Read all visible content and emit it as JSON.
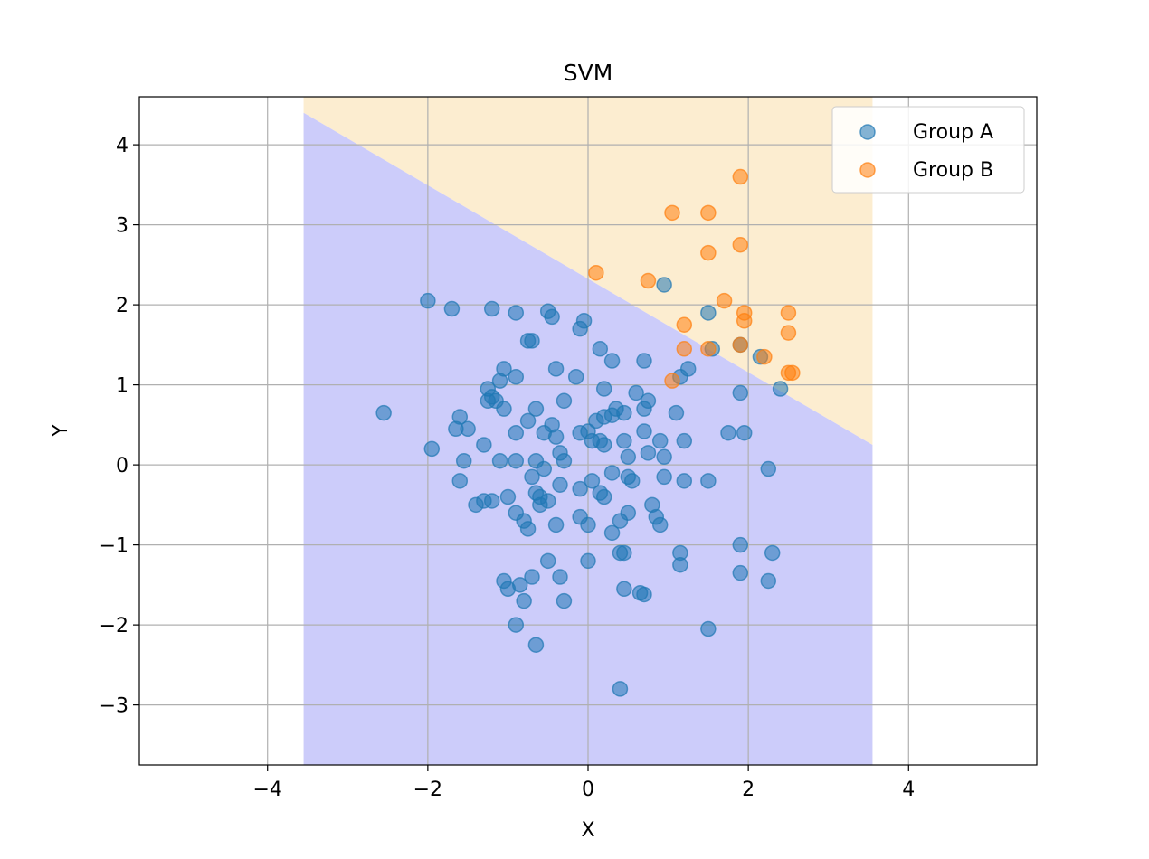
{
  "chart_data": {
    "type": "scatter",
    "title": "SVM",
    "xlabel": "X",
    "ylabel": "Y",
    "xlim": [
      -5.6,
      5.6
    ],
    "ylim": [
      -3.75,
      4.6
    ],
    "xticks": [
      -4,
      -2,
      0,
      2,
      4
    ],
    "xtick_labels": [
      "−4",
      "−2",
      "0",
      "2",
      "4"
    ],
    "yticks": [
      -3,
      -2,
      -1,
      0,
      1,
      2,
      3,
      4
    ],
    "ytick_labels": [
      "−3",
      "−2",
      "−1",
      "0",
      "1",
      "2",
      "3",
      "4"
    ],
    "grid": true,
    "legend": {
      "position": "upper right",
      "entries": [
        "Group A",
        "Group B"
      ]
    },
    "decision_regions": {
      "x_range": [
        -3.55,
        3.55
      ],
      "boundary": {
        "x0": -3.55,
        "y0": 4.4,
        "x1": 3.55,
        "y1": 0.25
      },
      "lower_region_color": "#ccccfa",
      "upper_region_color": "#fcedd0"
    },
    "series": [
      {
        "name": "Group A",
        "color": "#1f77b4",
        "points": [
          [
            -2.0,
            2.05
          ],
          [
            -1.7,
            1.95
          ],
          [
            -1.2,
            1.95
          ],
          [
            -0.9,
            1.9
          ],
          [
            -0.5,
            1.92
          ],
          [
            -0.45,
            1.85
          ],
          [
            -0.05,
            1.8
          ],
          [
            -0.1,
            1.7
          ],
          [
            -0.75,
            1.55
          ],
          [
            -0.7,
            1.55
          ],
          [
            0.15,
            1.45
          ],
          [
            0.3,
            1.3
          ],
          [
            0.7,
            1.3
          ],
          [
            -1.05,
            1.2
          ],
          [
            -0.4,
            1.2
          ],
          [
            -0.15,
            1.1
          ],
          [
            -1.1,
            1.05
          ],
          [
            -0.9,
            1.1
          ],
          [
            -1.25,
            0.95
          ],
          [
            -1.2,
            0.85
          ],
          [
            -1.25,
            0.8
          ],
          [
            -1.15,
            0.8
          ],
          [
            -0.3,
            0.8
          ],
          [
            0.2,
            0.95
          ],
          [
            0.6,
            0.9
          ],
          [
            0.75,
            0.8
          ],
          [
            -1.05,
            0.7
          ],
          [
            -0.65,
            0.7
          ],
          [
            -0.75,
            0.55
          ],
          [
            -0.45,
            0.5
          ],
          [
            0.35,
            0.7
          ],
          [
            0.45,
            0.65
          ],
          [
            0.7,
            0.7
          ],
          [
            1.1,
            0.65
          ],
          [
            -1.6,
            0.6
          ],
          [
            -1.65,
            0.45
          ],
          [
            -1.5,
            0.45
          ],
          [
            -0.9,
            0.4
          ],
          [
            -0.55,
            0.4
          ],
          [
            -0.1,
            0.4
          ],
          [
            0.0,
            0.42
          ],
          [
            0.1,
            0.55
          ],
          [
            0.2,
            0.6
          ],
          [
            0.3,
            0.62
          ],
          [
            0.7,
            0.42
          ],
          [
            -2.55,
            0.65
          ],
          [
            -1.95,
            0.2
          ],
          [
            -1.3,
            0.25
          ],
          [
            -0.4,
            0.35
          ],
          [
            0.05,
            0.3
          ],
          [
            0.15,
            0.3
          ],
          [
            0.2,
            0.25
          ],
          [
            0.45,
            0.3
          ],
          [
            0.9,
            0.3
          ],
          [
            1.2,
            0.3
          ],
          [
            -1.55,
            0.05
          ],
          [
            -1.1,
            0.05
          ],
          [
            -0.9,
            0.05
          ],
          [
            -0.65,
            0.05
          ],
          [
            -0.35,
            0.15
          ],
          [
            -0.3,
            0.05
          ],
          [
            0.5,
            0.1
          ],
          [
            0.75,
            0.15
          ],
          [
            0.95,
            0.1
          ],
          [
            -0.55,
            -0.05
          ],
          [
            -0.7,
            -0.15
          ],
          [
            0.3,
            -0.1
          ],
          [
            0.5,
            -0.15
          ],
          [
            0.55,
            -0.2
          ],
          [
            0.95,
            -0.15
          ],
          [
            1.2,
            -0.2
          ],
          [
            1.5,
            -0.2
          ],
          [
            -1.6,
            -0.2
          ],
          [
            -1.0,
            -0.4
          ],
          [
            -0.65,
            -0.35
          ],
          [
            -0.6,
            -0.4
          ],
          [
            -0.35,
            -0.25
          ],
          [
            -0.1,
            -0.3
          ],
          [
            0.05,
            -0.2
          ],
          [
            0.15,
            -0.35
          ],
          [
            0.2,
            -0.4
          ],
          [
            -1.4,
            -0.5
          ],
          [
            -1.3,
            -0.45
          ],
          [
            -1.2,
            -0.45
          ],
          [
            -0.6,
            -0.5
          ],
          [
            -0.5,
            -0.45
          ],
          [
            -0.9,
            -0.6
          ],
          [
            -0.8,
            -0.7
          ],
          [
            -0.75,
            -0.8
          ],
          [
            -0.4,
            -0.75
          ],
          [
            -0.1,
            -0.65
          ],
          [
            0.0,
            -0.75
          ],
          [
            0.4,
            -0.7
          ],
          [
            0.5,
            -0.6
          ],
          [
            0.8,
            -0.5
          ],
          [
            0.85,
            -0.65
          ],
          [
            0.9,
            -0.75
          ],
          [
            0.3,
            -0.85
          ],
          [
            0.4,
            -1.1
          ],
          [
            0.45,
            -1.1
          ],
          [
            -0.5,
            -1.2
          ],
          [
            0.0,
            -1.2
          ],
          [
            1.15,
            -1.1
          ],
          [
            1.15,
            -1.25
          ],
          [
            1.9,
            -1.0
          ],
          [
            1.9,
            -1.35
          ],
          [
            2.3,
            -1.1
          ],
          [
            -1.05,
            -1.45
          ],
          [
            -1.0,
            -1.55
          ],
          [
            -0.7,
            -1.4
          ],
          [
            -0.35,
            -1.4
          ],
          [
            -0.3,
            -1.7
          ],
          [
            -0.8,
            -1.7
          ],
          [
            -0.85,
            -1.5
          ],
          [
            0.45,
            -1.55
          ],
          [
            0.65,
            -1.6
          ],
          [
            0.7,
            -1.62
          ],
          [
            2.25,
            -1.45
          ],
          [
            -0.9,
            -2.0
          ],
          [
            -0.65,
            -2.25
          ],
          [
            1.5,
            -2.05
          ],
          [
            0.4,
            -2.8
          ],
          [
            1.9,
            1.5
          ],
          [
            2.15,
            1.35
          ],
          [
            2.4,
            0.95
          ],
          [
            1.55,
            1.45
          ],
          [
            1.25,
            1.2
          ],
          [
            1.15,
            1.1
          ],
          [
            1.5,
            1.9
          ],
          [
            0.95,
            2.25
          ],
          [
            1.9,
            0.9
          ],
          [
            1.75,
            0.4
          ],
          [
            1.95,
            0.4
          ],
          [
            2.25,
            -0.05
          ]
        ]
      },
      {
        "name": "Group B",
        "color": "#ff7f0e",
        "points": [
          [
            1.9,
            3.6
          ],
          [
            1.05,
            3.15
          ],
          [
            1.5,
            3.15
          ],
          [
            1.9,
            2.75
          ],
          [
            1.5,
            2.65
          ],
          [
            0.1,
            2.4
          ],
          [
            0.75,
            2.3
          ],
          [
            1.7,
            2.05
          ],
          [
            1.95,
            1.9
          ],
          [
            1.95,
            1.8
          ],
          [
            1.2,
            1.75
          ],
          [
            2.5,
            1.9
          ],
          [
            2.5,
            1.65
          ],
          [
            1.2,
            1.45
          ],
          [
            1.5,
            1.45
          ],
          [
            1.9,
            1.5
          ],
          [
            2.2,
            1.35
          ],
          [
            2.55,
            1.15
          ],
          [
            2.5,
            1.15
          ],
          [
            1.05,
            1.05
          ]
        ]
      }
    ]
  }
}
